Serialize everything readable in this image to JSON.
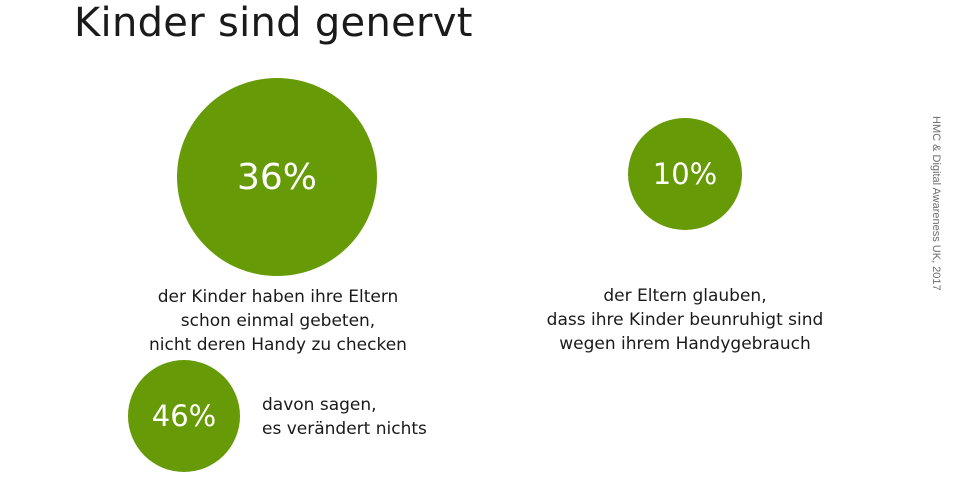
{
  "chart_data": {
    "type": "bubble",
    "title": "Kinder sind genervt",
    "color": "#669a06",
    "items": [
      {
        "value": 36,
        "label": "36%",
        "caption": [
          "der Kinder haben ihre Eltern",
          "schon einmal gebeten,",
          "nicht deren Handy zu checken"
        ]
      },
      {
        "value": 10,
        "label": "10%",
        "caption": [
          "der Eltern glauben,",
          "dass ihre Kinder beunruhigt sind",
          "wegen ihrem Handygebrauch"
        ]
      },
      {
        "value": 46,
        "label": "46%",
        "caption": [
          "davon sagen,",
          "es verändert nichts"
        ]
      }
    ],
    "source": "HMC & Digital Awareness UK, 2017"
  }
}
